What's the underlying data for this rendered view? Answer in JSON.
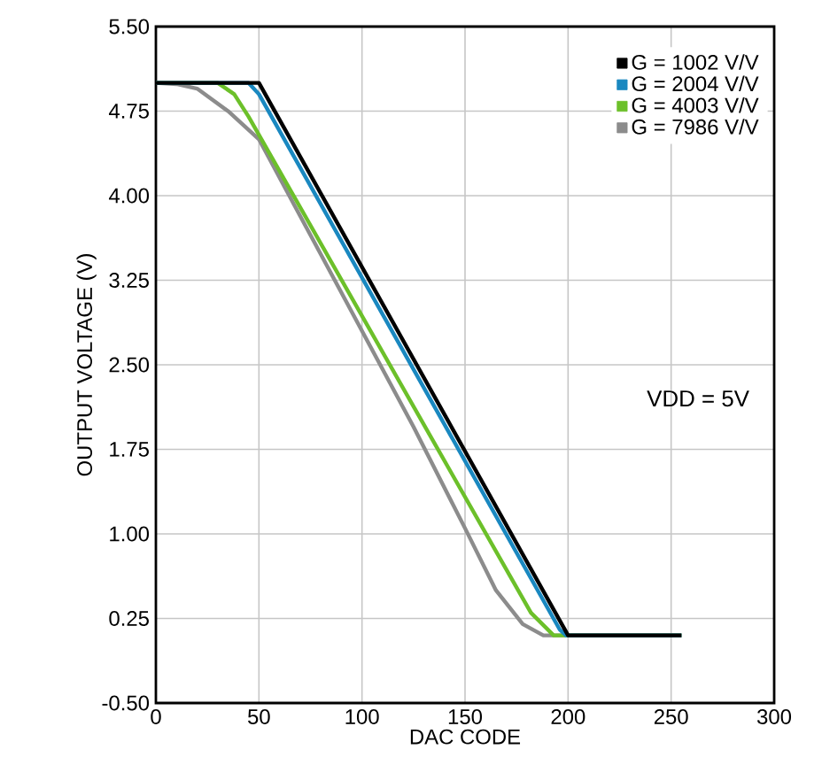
{
  "chart_data": {
    "type": "line",
    "xlabel": "DAC CODE",
    "ylabel": "OUTPUT VOLTAGE (V)",
    "xlim": [
      0,
      300
    ],
    "xticks": [
      0,
      50,
      100,
      150,
      200,
      250,
      300
    ],
    "ylim": [
      -0.5,
      5.5
    ],
    "yticks": [
      {
        "value": -0.5,
        "label": "-0.50"
      },
      {
        "value": 0.25,
        "label": "0.25"
      },
      {
        "value": 1.0,
        "label": "1.00"
      },
      {
        "value": 1.75,
        "label": "1.75"
      },
      {
        "value": 2.5,
        "label": "2.50"
      },
      {
        "value": 3.25,
        "label": "3.25"
      },
      {
        "value": 4.0,
        "label": "4.00"
      },
      {
        "value": 4.75,
        "label": "4.75"
      },
      {
        "value": 5.5,
        "label": "5.50"
      }
    ],
    "grid": true,
    "legend": "top right",
    "annotations": [
      "VDD = 5V"
    ],
    "series": [
      {
        "name": "G = 7986 V/V",
        "color": "#8c8c8c",
        "x": [
          0,
          10,
          20,
          35,
          50,
          75,
          100,
          125,
          150,
          165,
          178,
          188,
          200,
          255
        ],
        "values": [
          5.0,
          4.99,
          4.95,
          4.75,
          4.5,
          3.65,
          2.8,
          1.95,
          1.05,
          0.5,
          0.2,
          0.1,
          0.1,
          0.1
        ]
      },
      {
        "name": "G = 4003 V/V",
        "color": "#6cc02a",
        "x": [
          0,
          30,
          38,
          45,
          182,
          193,
          200,
          255
        ],
        "values": [
          5.0,
          5.0,
          4.9,
          4.7,
          0.3,
          0.1,
          0.1,
          0.1
        ]
      },
      {
        "name": "G = 2004 V/V",
        "color": "#1a88c0",
        "x": [
          0,
          45,
          50,
          196,
          199,
          255
        ],
        "values": [
          5.0,
          5.0,
          4.9,
          0.15,
          0.1,
          0.1
        ]
      },
      {
        "name": "G = 1002 V/V",
        "color": "#000000",
        "x": [
          0,
          50,
          200,
          255
        ],
        "values": [
          5.0,
          5.0,
          0.1,
          0.1
        ]
      }
    ]
  }
}
